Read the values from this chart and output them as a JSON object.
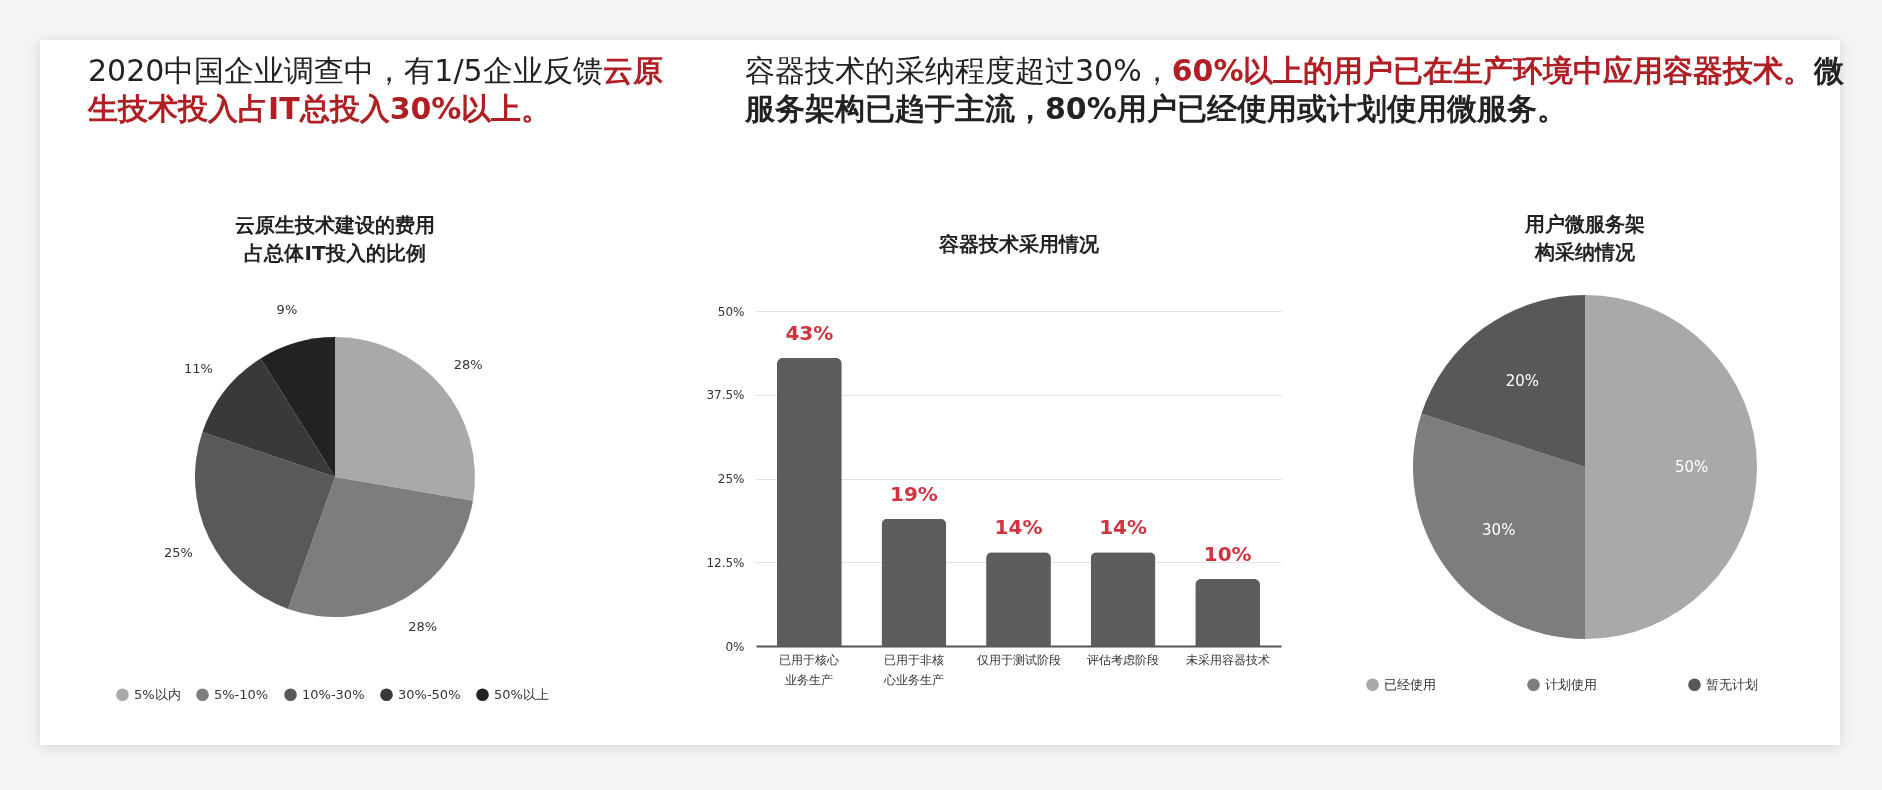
{
  "chart_data": [
    {
      "type": "other",
      "annotations": [
        "2020中国企业调查中，有1/5企业反馈",
        "云原生技术投入占IT总投入30%以上。"
      ]
    },
    {
      "type": "other",
      "annotations": [
        "容器技术的采纳程度超过30%，",
        "60%以上的用户已在生产环境中应用容器技术。",
        "微服务架构已趋于主流，80%用户已经使用或计划使用微服务。"
      ]
    },
    {
      "type": "pie",
      "title": "云原生技术建设的费用占总体IT投入的比例",
      "categories": [
        "5%以内",
        "5%-10%",
        "10%-30%",
        "30%-50%",
        "50%以上"
      ],
      "values": [
        28,
        28,
        25,
        11,
        9
      ],
      "value_labels": [
        "28%",
        "28%",
        "25%",
        "11%",
        "9%"
      ],
      "colors": [
        "#a9a8aa",
        "#7e7c7f",
        "#5a585b",
        "#3a383a",
        "#232223"
      ],
      "legend": "bottom"
    },
    {
      "type": "bar",
      "title": "容器技术采用情况",
      "categories": [
        "已用于核心业务生产",
        "已用于非核心业务生产",
        "仅用于测试阶段",
        "评估考虑阶段",
        "未采用容器技术"
      ],
      "values": [
        43,
        19,
        14,
        14,
        10
      ],
      "value_labels": [
        "43%",
        "19%",
        "14%",
        "14%",
        "10%"
      ],
      "color": "#5e5c5f",
      "ylim": [
        0,
        50
      ],
      "yticks": [
        {
          "value": 0,
          "label": "0%"
        },
        {
          "value": 12.5,
          "label": "12.5%"
        },
        {
          "value": 25,
          "label": "25%"
        },
        {
          "value": 37.5,
          "label": "37.5%"
        },
        {
          "value": 50,
          "label": "50%"
        }
      ],
      "grid": "y"
    },
    {
      "type": "pie",
      "title": "用户微服务架构采纳情况",
      "categories": [
        "已经使用",
        "计划使用",
        "暂无计划"
      ],
      "values": [
        50,
        30,
        20
      ],
      "value_labels": [
        "50%",
        "30%",
        "20%"
      ],
      "colors": [
        "#a9a8aa",
        "#7e7c7f",
        "#59575a"
      ],
      "legend": "bottom"
    }
  ]
}
